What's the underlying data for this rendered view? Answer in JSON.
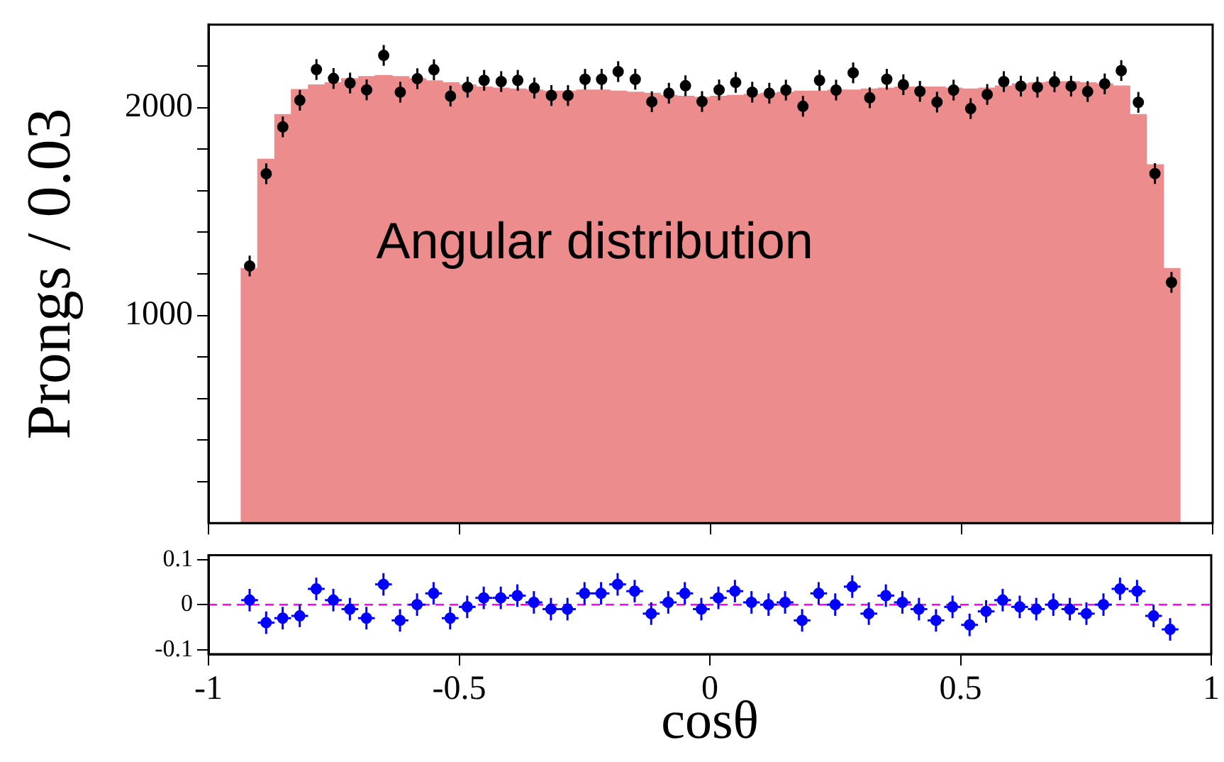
{
  "chart_data": [
    {
      "type": "histogram",
      "ylabel": "Prongs / 0.03",
      "annotations": [
        "Angular distribution"
      ],
      "xlim": [
        -1,
        1
      ],
      "xticks": [
        -1,
        -0.5,
        0,
        0.5,
        1
      ],
      "ylim": [
        0,
        2400
      ],
      "yticks": [
        {
          "value": 200,
          "label": null
        },
        {
          "value": 400,
          "label": null
        },
        {
          "value": 600,
          "label": null
        },
        {
          "value": 800,
          "label": null
        },
        1000,
        {
          "value": 1200,
          "label": null
        },
        {
          "value": 1400,
          "label": null
        },
        {
          "value": 1600,
          "label": null
        },
        {
          "value": 1800,
          "label": null
        },
        2000,
        {
          "value": 2200,
          "label": null
        }
      ],
      "tick_labels": "y",
      "grid": false,
      "legend": false,
      "marker": "circle",
      "bins": [
        -0.935,
        -0.902,
        -0.868,
        -0.835,
        -0.801,
        -0.768,
        -0.735,
        -0.701,
        -0.668,
        -0.634,
        -0.601,
        -0.567,
        -0.534,
        -0.501,
        -0.467,
        -0.434,
        -0.401,
        -0.367,
        -0.334,
        -0.3,
        -0.267,
        -0.234,
        -0.2,
        -0.167,
        -0.133,
        -0.1,
        -0.067,
        -0.033,
        0,
        0.033,
        0.067,
        0.1,
        0.133,
        0.167,
        0.2,
        0.234,
        0.267,
        0.3,
        0.334,
        0.367,
        0.401,
        0.434,
        0.467,
        0.501,
        0.534,
        0.567,
        0.601,
        0.634,
        0.668,
        0.701,
        0.735,
        0.768,
        0.801,
        0.835,
        0.868,
        0.902,
        0.935
      ],
      "series": [
        {
          "type": "histogram",
          "color": "#ec8c8c",
          "values": [
            1226,
            1752,
            1967,
            2088,
            2110,
            2120,
            2140,
            2150,
            2155,
            2150,
            2140,
            2130,
            2120,
            2110,
            2100,
            2095,
            2090,
            2085,
            2080,
            2080,
            2085,
            2085,
            2080,
            2075,
            2070,
            2060,
            2055,
            2050,
            2055,
            2060,
            2065,
            2070,
            2075,
            2080,
            2080,
            2085,
            2085,
            2090,
            2095,
            2100,
            2100,
            2100,
            2095,
            2090,
            2095,
            2105,
            2115,
            2120,
            2125,
            2125,
            2120,
            2115,
            2105,
            1967,
            1726,
            1226
          ]
        },
        {
          "type": "scatter",
          "color": "#000000",
          "errors": [
            50,
            50,
            50,
            50,
            50,
            50,
            50,
            50,
            50,
            50,
            50,
            50,
            50,
            50,
            50,
            50,
            50,
            50,
            50,
            50,
            50,
            50,
            50,
            50,
            50,
            50,
            50,
            50,
            50,
            50,
            50,
            50,
            50,
            50,
            50,
            50,
            50,
            50,
            50,
            50,
            50,
            50,
            50,
            50,
            50,
            50,
            50,
            50,
            50,
            50,
            50,
            50,
            50,
            50,
            50,
            50
          ],
          "x": [
            -0.918,
            -0.885,
            -0.852,
            -0.818,
            -0.785,
            -0.751,
            -0.718,
            -0.685,
            -0.651,
            -0.618,
            -0.584,
            -0.551,
            -0.518,
            -0.484,
            -0.451,
            -0.417,
            -0.384,
            -0.351,
            -0.317,
            -0.284,
            -0.25,
            -0.217,
            -0.184,
            -0.15,
            -0.117,
            -0.083,
            -0.05,
            -0.017,
            0.017,
            0.05,
            0.083,
            0.117,
            0.15,
            0.184,
            0.217,
            0.25,
            0.284,
            0.317,
            0.351,
            0.384,
            0.417,
            0.451,
            0.484,
            0.518,
            0.551,
            0.584,
            0.618,
            0.651,
            0.685,
            0.718,
            0.751,
            0.785,
            0.818,
            0.852,
            0.885,
            0.918
          ],
          "values": [
            1238,
            1682,
            1908,
            2036,
            2184,
            2141,
            2119,
            2086,
            2252,
            2075,
            2140,
            2183,
            2056,
            2099,
            2132,
            2126,
            2132,
            2095,
            2059,
            2059,
            2137,
            2137,
            2174,
            2137,
            2029,
            2070,
            2106,
            2030,
            2086,
            2122,
            2075,
            2070,
            2085,
            2007,
            2132,
            2085,
            2168,
            2048,
            2137,
            2111,
            2079,
            2027,
            2085,
            1996,
            2064,
            2126,
            2104,
            2099,
            2125,
            2104,
            2078,
            2115,
            2179,
            2026,
            1683,
            1159
          ]
        }
      ]
    },
    {
      "type": "scatter",
      "xlabel": "cosθ",
      "xlim": [
        -1,
        1
      ],
      "xticks": [
        -1,
        -0.5,
        0,
        0.5,
        1
      ],
      "ylim": [
        -0.11,
        0.11
      ],
      "yticks": [
        -0.1,
        0,
        0.1
      ],
      "grid": false,
      "legend": false,
      "marker": "circle",
      "ref_lines": [
        {
          "axis": "y",
          "value": 0,
          "color": "#ff00ff",
          "line_style": "dashed"
        }
      ],
      "series": [
        {
          "color": "#0000ff",
          "errors": [
            0.025,
            0.025,
            0.025,
            0.025,
            0.025,
            0.025,
            0.025,
            0.025,
            0.025,
            0.025,
            0.025,
            0.025,
            0.025,
            0.025,
            0.025,
            0.025,
            0.025,
            0.025,
            0.025,
            0.025,
            0.025,
            0.025,
            0.025,
            0.025,
            0.025,
            0.025,
            0.025,
            0.025,
            0.025,
            0.025,
            0.025,
            0.025,
            0.025,
            0.025,
            0.025,
            0.025,
            0.025,
            0.025,
            0.025,
            0.025,
            0.025,
            0.025,
            0.025,
            0.025,
            0.025,
            0.025,
            0.025,
            0.025,
            0.025,
            0.025,
            0.025,
            0.025,
            0.025,
            0.025,
            0.025,
            0.025
          ],
          "xerrors": [
            0.0167,
            0.0167,
            0.0167,
            0.0167,
            0.0167,
            0.0167,
            0.0167,
            0.0167,
            0.0167,
            0.0167,
            0.0167,
            0.0167,
            0.0167,
            0.0167,
            0.0167,
            0.0167,
            0.0167,
            0.0167,
            0.0167,
            0.0167,
            0.0167,
            0.0167,
            0.0167,
            0.0167,
            0.0167,
            0.0167,
            0.0167,
            0.0167,
            0.0167,
            0.0167,
            0.0167,
            0.0167,
            0.0167,
            0.0167,
            0.0167,
            0.0167,
            0.0167,
            0.0167,
            0.0167,
            0.0167,
            0.0167,
            0.0167,
            0.0167,
            0.0167,
            0.0167,
            0.0167,
            0.0167,
            0.0167,
            0.0167,
            0.0167,
            0.0167,
            0.0167,
            0.0167,
            0.0167,
            0.0167,
            0.0167
          ],
          "x": [
            -0.918,
            -0.885,
            -0.852,
            -0.818,
            -0.785,
            -0.751,
            -0.718,
            -0.685,
            -0.651,
            -0.618,
            -0.584,
            -0.551,
            -0.518,
            -0.484,
            -0.451,
            -0.417,
            -0.384,
            -0.351,
            -0.317,
            -0.284,
            -0.25,
            -0.217,
            -0.184,
            -0.15,
            -0.117,
            -0.083,
            -0.05,
            -0.017,
            0.017,
            0.05,
            0.083,
            0.117,
            0.15,
            0.184,
            0.217,
            0.25,
            0.284,
            0.317,
            0.351,
            0.384,
            0.417,
            0.451,
            0.484,
            0.518,
            0.551,
            0.584,
            0.618,
            0.651,
            0.685,
            0.718,
            0.751,
            0.785,
            0.818,
            0.852,
            0.885,
            0.918
          ],
          "values": [
            0.01,
            -0.04,
            -0.03,
            -0.025,
            0.035,
            0.01,
            -0.01,
            -0.03,
            0.045,
            -0.035,
            0,
            0.025,
            -0.03,
            -0.005,
            0.015,
            0.015,
            0.02,
            0.005,
            -0.01,
            -0.01,
            0.025,
            0.025,
            0.045,
            0.03,
            -0.02,
            0.005,
            0.025,
            -0.01,
            0.015,
            0.03,
            0.005,
            0,
            0.005,
            -0.035,
            0.025,
            0,
            0.04,
            -0.02,
            0.02,
            0.005,
            -0.01,
            -0.035,
            -0.005,
            -0.045,
            -0.015,
            0.01,
            -0.005,
            -0.01,
            0,
            -0.01,
            -0.02,
            0,
            0.035,
            0.03,
            -0.025,
            -0.055
          ]
        }
      ]
    }
  ]
}
